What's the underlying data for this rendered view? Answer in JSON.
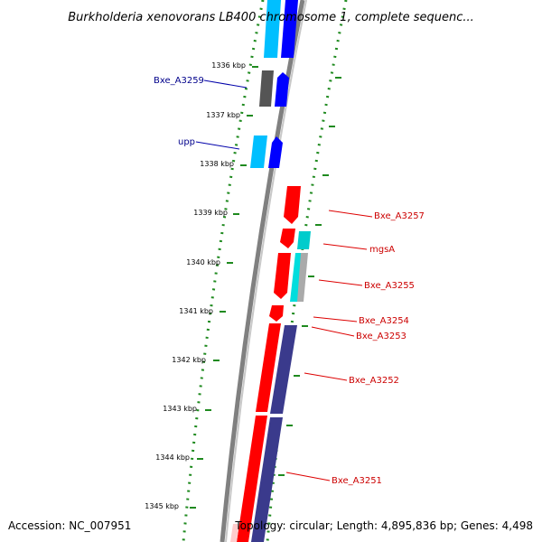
{
  "title": "Burkholderia xenovorans LB400 chromosome 1, complete sequenc...",
  "accession": "Accession: NC_007951",
  "topology": "Topology: circular; Length: 4,895,836 bp; Genes: 4,498",
  "colors": {
    "backbone": "#808080",
    "tick": "#1f8a1f",
    "label_blue": "#00008b",
    "label_red": "#cc0000",
    "gene_red": "#ff0000",
    "gene_blue": "#0000ff",
    "gene_cyan": "#00bfff",
    "gene_teal": "#00cccc",
    "gene_gray": "#555555",
    "gene_navy": "#3a3a8c"
  },
  "ticks": [
    {
      "label": "1336 kbp"
    },
    {
      "label": "1337 kbp"
    },
    {
      "label": "1338 kbp"
    },
    {
      "label": "1339 kbp"
    },
    {
      "label": "1340 kbp"
    },
    {
      "label": "1341 kbp"
    },
    {
      "label": "1342 kbp"
    },
    {
      "label": "1343 kbp"
    },
    {
      "label": "1344 kbp"
    },
    {
      "label": "1345 kbp"
    }
  ],
  "gene_labels": [
    {
      "name": "Bxe_A3259",
      "color": "#00008b"
    },
    {
      "name": "upp",
      "color": "#00008b"
    },
    {
      "name": "Bxe_A3257",
      "color": "#cc0000"
    },
    {
      "name": "mgsA",
      "color": "#cc0000"
    },
    {
      "name": "Bxe_A3255",
      "color": "#cc0000"
    },
    {
      "name": "Bxe_A3254",
      "color": "#cc0000"
    },
    {
      "name": "Bxe_A3253",
      "color": "#cc0000"
    },
    {
      "name": "Bxe_A3252",
      "color": "#cc0000"
    },
    {
      "name": "Bxe_A3251",
      "color": "#cc0000"
    }
  ]
}
